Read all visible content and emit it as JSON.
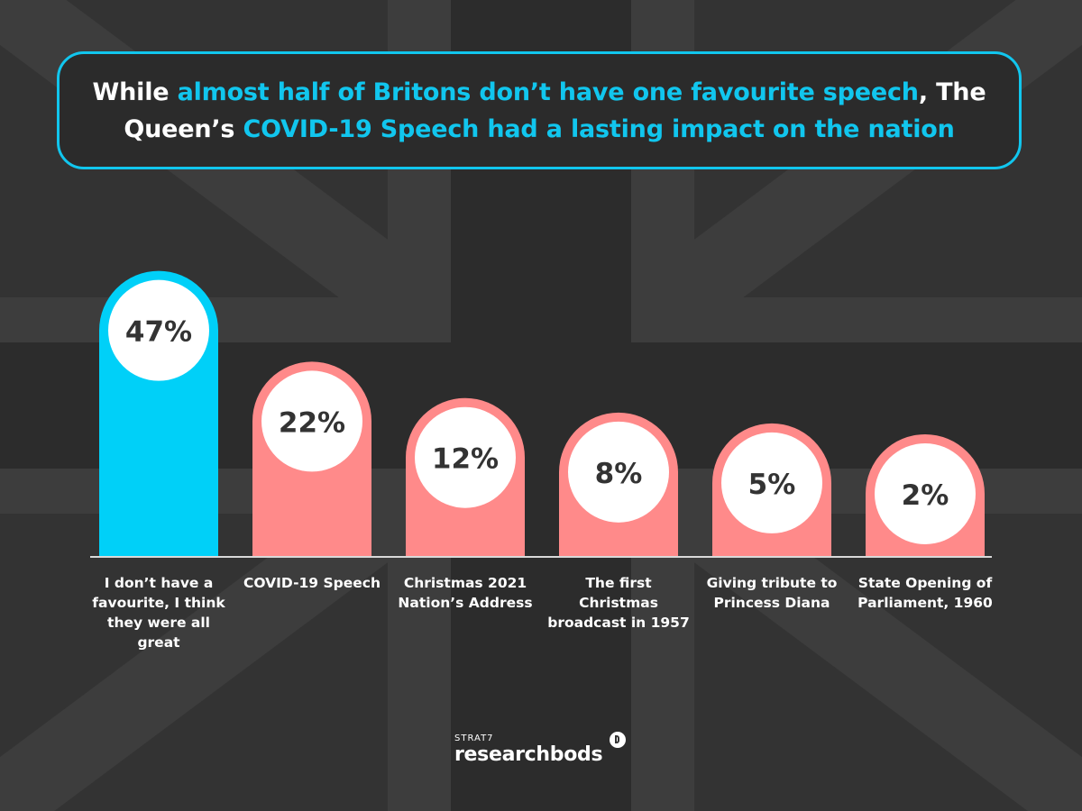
{
  "title": {
    "part1": "While ",
    "part2": "almost half of Britons don’t have one favourite speech",
    "part3": ", The Queen’s ",
    "part4": "COVID-19 Speech had a lasting impact on the nation"
  },
  "colors": {
    "background": "#333333",
    "accent": "#11c6ee",
    "bar_highlight": "#00d0f8",
    "bar_default": "#ff8a8a",
    "axis": "#d9d9d9"
  },
  "chart_data": {
    "type": "bar",
    "categories": [
      "I don’t have a favourite, I think they were all great",
      "COVID-19 Speech",
      "Christmas 2021 Nation’s Address",
      "The first Christmas broadcast in 1957",
      "Giving tribute to Princess Diana",
      "State Opening of Parliament, 1960"
    ],
    "values": [
      47,
      22,
      12,
      8,
      5,
      2
    ],
    "value_labels": [
      "47%",
      "22%",
      "12%",
      "8%",
      "5%",
      "2%"
    ],
    "highlight_index": 0,
    "xlabel": "",
    "ylabel": "",
    "grid": false,
    "legend": "none"
  },
  "logo": {
    "small": "STRAT7",
    "main": "researchbods",
    "icon": "researchbods-mark-icon"
  }
}
